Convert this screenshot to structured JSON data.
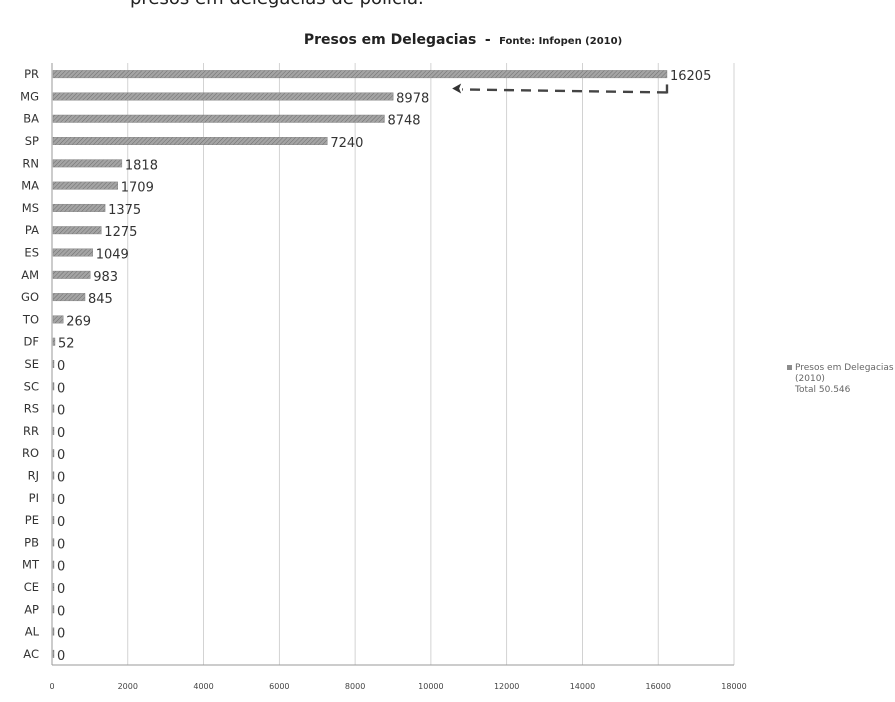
{
  "page_top_text": "presos em delegacias de polícia.",
  "chart_data": {
    "type": "bar",
    "orientation": "horizontal",
    "title": "Presos em Delegacias",
    "title_separator": "-",
    "subtitle": "Fonte: Infopen (2010)",
    "categories": [
      "PR",
      "MG",
      "BA",
      "SP",
      "RN",
      "MA",
      "MS",
      "PA",
      "ES",
      "AM",
      "GO",
      "TO",
      "DF",
      "SE",
      "SC",
      "RS",
      "RR",
      "RO",
      "RJ",
      "PI",
      "PE",
      "PB",
      "MT",
      "CE",
      "AP",
      "AL",
      "AC"
    ],
    "series": [
      {
        "values": [
          16205,
          8978,
          8748,
          7240,
          1818,
          1709,
          1375,
          1275,
          1049,
          983,
          845,
          269,
          52,
          0,
          0,
          0,
          0,
          0,
          0,
          0,
          0,
          0,
          0,
          0,
          0,
          0,
          0
        ]
      }
    ],
    "xlim": [
      0,
      18000
    ],
    "x_ticks": [
      "0",
      "2000",
      "4000",
      "6000",
      "8000",
      "10000",
      "12000",
      "14000",
      "16000",
      "18000"
    ],
    "grid": true,
    "bar_color": "#8c8c8c",
    "legend": {
      "position": "right",
      "lines": [
        "Presos em Delegacias",
        "(2010)",
        "Total 50.546"
      ]
    },
    "annotation": "dashed arrow from right edge pointing at top bar end"
  }
}
